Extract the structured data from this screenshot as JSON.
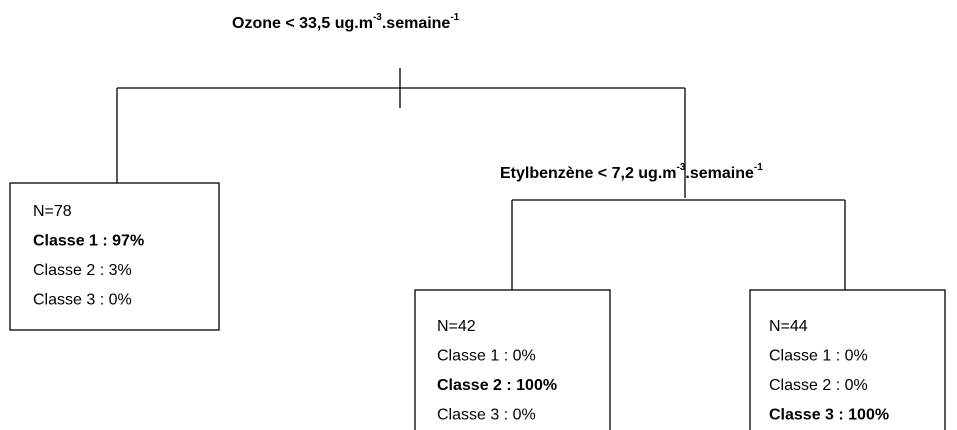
{
  "splits": [
    {
      "text": "Ozone < 33,5 ug.m",
      "sup1": "-3",
      "unit": ".semaine",
      "sup2": "-1"
    },
    {
      "text": "Etylbenzène < 7,2 ug.m",
      "sup1": "-3",
      "unit": ".semaine",
      "sup2": "-1"
    }
  ],
  "leaves": [
    {
      "lines": [
        "N=78",
        "Classe 1 : 97%",
        "Classe 2 : 3%",
        "Classe 3 : 0%"
      ],
      "bold_line": 1
    },
    {
      "lines": [
        "N=42",
        "Classe 1 : 0%",
        "Classe 2 : 100%",
        "Classe 3 : 0%"
      ],
      "bold_line": 2
    },
    {
      "lines": [
        "N=44",
        "Classe 1 : 0%",
        "Classe 2 : 0%",
        "Classe 3 : 100%"
      ],
      "bold_line": 3
    }
  ]
}
